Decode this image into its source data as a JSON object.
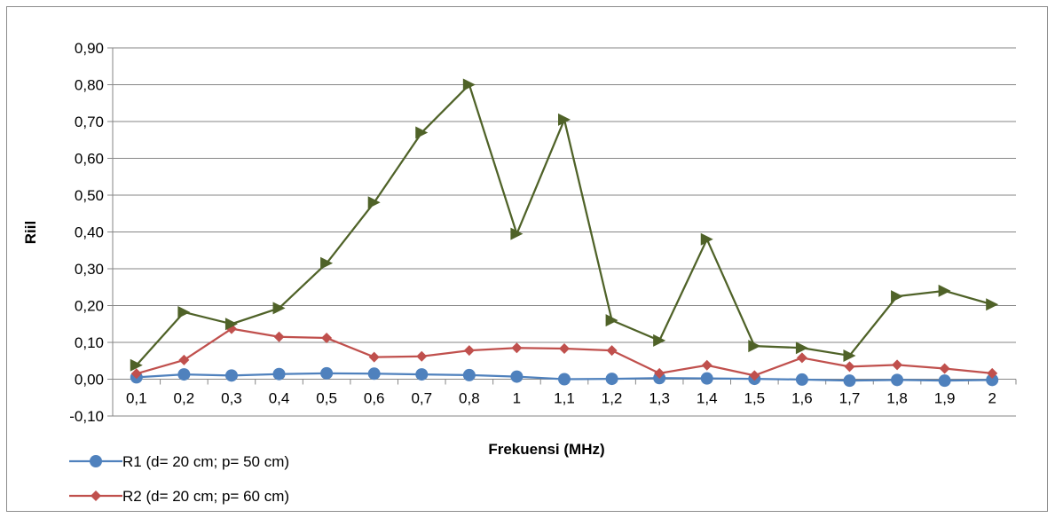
{
  "chart_data": {
    "type": "line",
    "title": "",
    "xlabel": "Frekuensi (MHz)",
    "ylabel": "Riil",
    "categories": [
      "0,1",
      "0,2",
      "0,3",
      "0,4",
      "0,5",
      "0,6",
      "0,7",
      "0,8",
      "1",
      "1,1",
      "1,2",
      "1,3",
      "1,4",
      "1,5",
      "1,6",
      "1,7",
      "1,8",
      "1,9",
      "2"
    ],
    "ylim": [
      -0.1,
      0.9
    ],
    "yticks": [
      "-0,10",
      "0,00",
      "0,10",
      "0,20",
      "0,30",
      "0,40",
      "0,50",
      "0,60",
      "0,70",
      "0,80",
      "0,90"
    ],
    "grid": true,
    "legend_position": "bottom-left",
    "series": [
      {
        "name": "R1 (d= 20 cm; p= 50 cm)",
        "color": "#4f81bd",
        "marker": "circle",
        "values": [
          0.005,
          0.013,
          0.01,
          0.014,
          0.016,
          0.015,
          0.013,
          0.011,
          0.007,
          0.0,
          0.001,
          0.003,
          0.002,
          0.001,
          -0.001,
          -0.004,
          -0.002,
          -0.004,
          -0.002
        ]
      },
      {
        "name": "R2 (d= 20 cm; p= 60 cm)",
        "color": "#c0504d",
        "marker": "diamond",
        "values": [
          0.015,
          0.052,
          0.137,
          0.115,
          0.112,
          0.06,
          0.062,
          0.078,
          0.085,
          0.083,
          0.078,
          0.016,
          0.038,
          0.01,
          0.058,
          0.034,
          0.039,
          0.029,
          0.016
        ]
      },
      {
        "color": "#4f6228",
        "marker": "triangle",
        "values": [
          0.038,
          0.182,
          0.15,
          0.193,
          0.315,
          0.48,
          0.67,
          0.8,
          0.395,
          0.705,
          0.16,
          0.105,
          0.38,
          0.09,
          0.085,
          0.064,
          0.225,
          0.24,
          0.203
        ]
      }
    ]
  }
}
